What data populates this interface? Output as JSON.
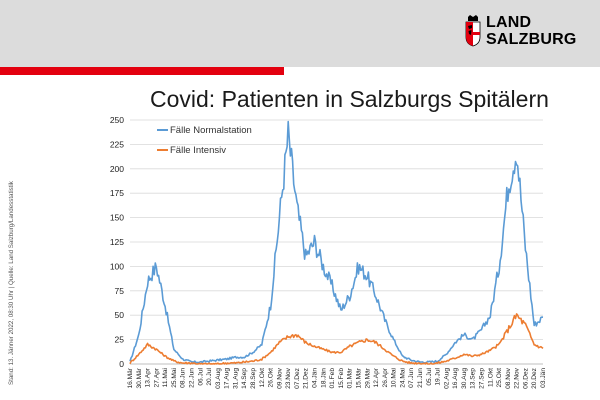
{
  "header": {
    "logo_line1": "LAND",
    "logo_line2": "SALZBURG",
    "accent_color": "#e3000f",
    "logo_icon": "salzburg-coat-of-arms-icon"
  },
  "side_note": "Stand: 13. Jänner 2022, 08:30 Uhr | Quelle: Land Salzburg/Landesstatistik",
  "chart_data": {
    "type": "line",
    "title": "Covid: Patienten in Salzburgs Spitälern",
    "xlabel": "",
    "ylabel": "",
    "ylim": [
      0,
      250
    ],
    "yticks": [
      0,
      25,
      50,
      75,
      100,
      125,
      150,
      175,
      200,
      225,
      250
    ],
    "grid": true,
    "legend_position": "top-left",
    "x_tick_labels": [
      "16.Mär",
      "30.Mär",
      "13.Apr",
      "27.Apr",
      "11.Mai",
      "25.Mai",
      "08.Jun",
      "22.Jun",
      "06.Jul",
      "20.Jul",
      "03.Aug",
      "17.Aug",
      "31.Aug",
      "14.Sep",
      "28.Sep",
      "12.Okt",
      "26.Okt",
      "09.Nov",
      "23.Nov",
      "07.Dez",
      "21.Dez",
      "04.Jän",
      "18.Jän",
      "01.Feb",
      "15.Feb",
      "01.Mär",
      "15.Mär",
      "29.Mär",
      "12.Apr",
      "26.Apr",
      "10.Mai",
      "24.Mai",
      "07.Jun",
      "21.Jun",
      "05.Jul",
      "19.Jul",
      "02.Aug",
      "16.Aug",
      "30.Aug",
      "13.Sep",
      "27.Sep",
      "11.Okt",
      "25.Okt",
      "08.Nov",
      "22.Nov",
      "06.Dez",
      "20.Dez",
      "03.Jän"
    ],
    "series": [
      {
        "name": "Fälle Normalstation",
        "color": "#5b9bd5",
        "values": [
          2,
          30,
          85,
          100,
          60,
          15,
          5,
          2,
          2,
          3,
          4,
          5,
          7,
          7,
          12,
          20,
          60,
          150,
          235,
          160,
          110,
          125,
          100,
          80,
          55,
          70,
          100,
          90,
          70,
          45,
          25,
          8,
          4,
          2,
          2,
          3,
          10,
          22,
          30,
          25,
          35,
          50,
          100,
          180,
          220,
          120,
          40,
          48
        ]
      },
      {
        "name": "Fälle Intensiv",
        "color": "#ed7d31",
        "values": [
          1,
          10,
          20,
          15,
          8,
          3,
          1,
          1,
          0,
          0,
          0,
          1,
          1,
          2,
          3,
          5,
          12,
          22,
          28,
          30,
          22,
          18,
          15,
          12,
          12,
          18,
          22,
          25,
          22,
          15,
          8,
          3,
          1,
          1,
          0,
          1,
          3,
          6,
          10,
          8,
          10,
          14,
          20,
          35,
          50,
          40,
          20,
          16
        ]
      }
    ]
  }
}
